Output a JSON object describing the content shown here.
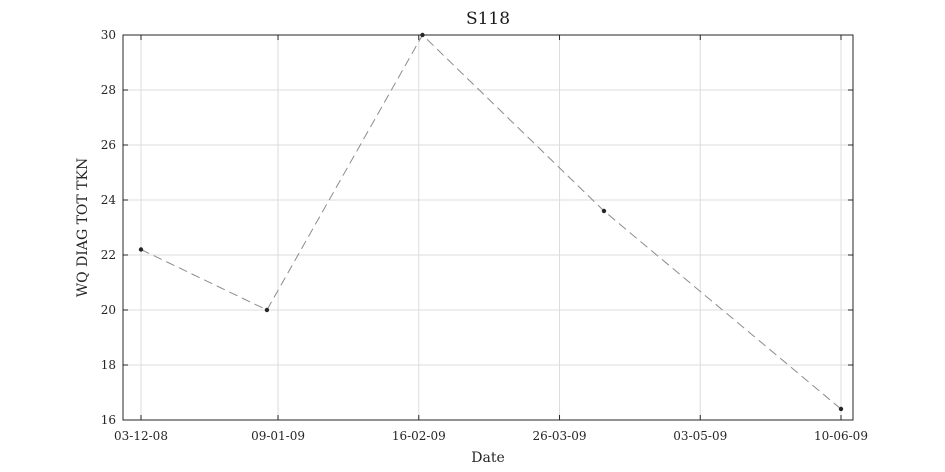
{
  "chart_data": {
    "type": "line",
    "title": "S118",
    "xlabel": "Date",
    "ylabel": "WQ DIAG TOT TKN",
    "x_type": "date",
    "xlim": [
      "2008-12-03",
      "2009-06-10"
    ],
    "ylim": [
      16,
      30
    ],
    "grid": true,
    "x_ticks": [
      "2008-12-03",
      "2009-01-09",
      "2009-02-16",
      "2009-03-26",
      "2009-05-03",
      "2009-06-10"
    ],
    "x_tick_labels": [
      "03-12-08",
      "09-01-09",
      "16-02-09",
      "26-03-09",
      "03-05-09",
      "10-06-09"
    ],
    "y_ticks": [
      16,
      18,
      20,
      22,
      24,
      26,
      28,
      30
    ],
    "y_tick_labels": [
      "16",
      "18",
      "20",
      "22",
      "24",
      "26",
      "28",
      "30"
    ],
    "series": [
      {
        "x": [
          "2008-12-03",
          "2009-01-06",
          "2009-02-17",
          "2009-04-07",
          "2009-06-10"
        ],
        "y": [
          22.2,
          20.0,
          30.0,
          23.6,
          16.4
        ],
        "line_style": "dashed",
        "marker": "dot",
        "color": "#8c8c8c",
        "marker_color": "#262626"
      }
    ]
  }
}
